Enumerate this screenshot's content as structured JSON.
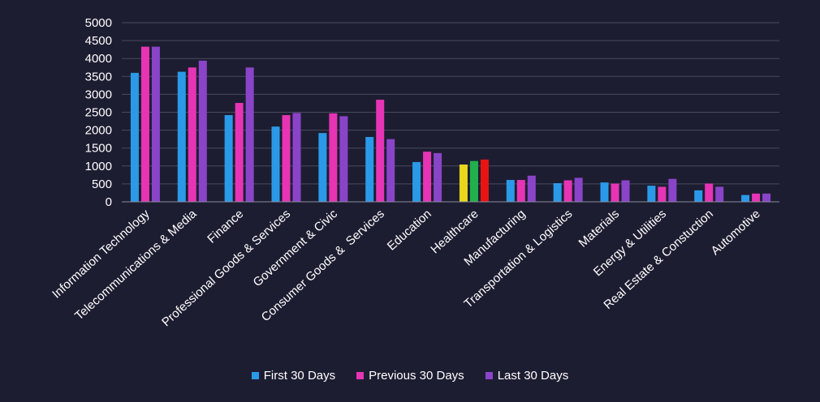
{
  "chart_data": {
    "type": "bar",
    "title": "",
    "xlabel": "",
    "ylabel": "",
    "ylim": [
      0,
      5000
    ],
    "yticks": [
      0,
      500,
      1000,
      1500,
      2000,
      2500,
      3000,
      3500,
      4000,
      4500,
      5000
    ],
    "grid": true,
    "legend_position": "bottom",
    "categories": [
      "Information Technology",
      "Telecommunications & Media",
      "Finance",
      "Professional Goods & Services",
      "Government & Civic",
      "Consumer Goods &  Services",
      "Education",
      "Healthcare",
      "Manufacturing",
      "Transportation & Logistics",
      "Materials",
      "Energy & Utilities",
      "Real Estate & Constuction",
      "Automotive"
    ],
    "series": [
      {
        "name": "First 30 Days",
        "color": "#2a9ae8",
        "values": [
          3600,
          3630,
          2420,
          2100,
          1920,
          1810,
          1110,
          1040,
          610,
          520,
          540,
          450,
          320,
          190
        ]
      },
      {
        "name": "Previous 30 Days",
        "color": "#e634b4",
        "values": [
          4330,
          3750,
          2760,
          2420,
          2470,
          2850,
          1400,
          1140,
          610,
          600,
          510,
          420,
          510,
          230
        ]
      },
      {
        "name": "Last 30 Days",
        "color": "#8a44c8",
        "values": [
          4330,
          3940,
          3750,
          2480,
          2390,
          1750,
          1360,
          1180,
          730,
          670,
          600,
          640,
          420,
          230
        ]
      }
    ],
    "point_color_overrides": [
      {
        "category": "Healthcare",
        "series": "First 30 Days",
        "color": "#e8d81c"
      },
      {
        "category": "Healthcare",
        "series": "Previous 30 Days",
        "color": "#22b04c"
      },
      {
        "category": "Healthcare",
        "series": "Last 30 Days",
        "color": "#e81414"
      }
    ]
  },
  "legend": {
    "items": [
      {
        "label": "First 30 Days",
        "color": "#2a9ae8"
      },
      {
        "label": "Previous 30 Days",
        "color": "#e634b4"
      },
      {
        "label": "Last 30 Days",
        "color": "#8a44c8"
      }
    ]
  }
}
